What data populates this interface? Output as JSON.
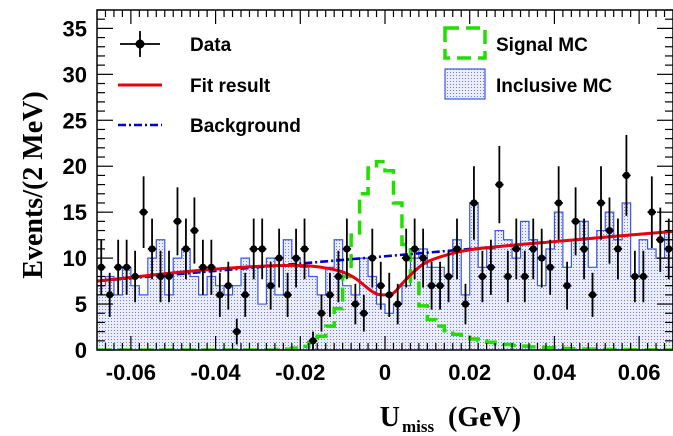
{
  "chart_data": {
    "type": "histogram-with-fit",
    "xlabel": "U",
    "xlabel_sub": "miss",
    "xlabel_unit": "(GeV)",
    "ylabel": "Events/(2 MeV)",
    "xlim": [
      -0.068,
      0.068
    ],
    "ylim": [
      0,
      37
    ],
    "x_ticks": [
      -0.06,
      -0.04,
      -0.02,
      0,
      0.02,
      0.04,
      0.06
    ],
    "x_tick_labels": [
      "-0.06",
      "-0.04",
      "-0.02",
      "0",
      "0.02",
      "0.04",
      "0.06"
    ],
    "y_ticks": [
      0,
      5,
      10,
      15,
      20,
      25,
      30,
      35
    ],
    "y_tick_labels": [
      "0",
      "5",
      "10",
      "15",
      "20",
      "25",
      "30",
      "35"
    ],
    "legend": [
      {
        "label": "Data",
        "kind": "data"
      },
      {
        "label": "Fit result",
        "kind": "fit"
      },
      {
        "label": "Background",
        "kind": "background"
      },
      {
        "label": "Signal MC",
        "kind": "signal"
      },
      {
        "label": "Inclusive MC",
        "kind": "inclusive"
      }
    ],
    "colors": {
      "data": "#000000",
      "fit": "#e8000b",
      "background": "#0000cc",
      "signal": "#22dd00",
      "inclusive_edge": "#3a57e8",
      "inclusive_fill": "#dde1f7"
    },
    "data_points": {
      "x": [
        -0.067,
        -0.065,
        -0.063,
        -0.061,
        -0.059,
        -0.057,
        -0.055,
        -0.053,
        -0.051,
        -0.049,
        -0.047,
        -0.045,
        -0.043,
        -0.041,
        -0.039,
        -0.037,
        -0.035,
        -0.033,
        -0.031,
        -0.029,
        -0.027,
        -0.025,
        -0.023,
        -0.021,
        -0.019,
        -0.017,
        -0.015,
        -0.013,
        -0.011,
        -0.009,
        -0.007,
        -0.005,
        -0.003,
        -0.001,
        0.001,
        0.003,
        0.005,
        0.007,
        0.009,
        0.011,
        0.013,
        0.015,
        0.017,
        0.019,
        0.021,
        0.023,
        0.025,
        0.027,
        0.029,
        0.031,
        0.033,
        0.035,
        0.037,
        0.039,
        0.041,
        0.043,
        0.045,
        0.047,
        0.049,
        0.051,
        0.053,
        0.055,
        0.057,
        0.059,
        0.061,
        0.063,
        0.065,
        0.067
      ],
      "y": [
        9,
        6,
        9,
        9,
        8,
        15,
        11,
        8,
        8,
        14,
        11,
        13,
        9,
        9,
        6,
        7,
        2,
        6,
        11,
        11,
        7,
        10,
        6,
        10,
        11,
        1,
        4,
        6,
        8,
        11,
        5,
        4,
        10,
        7,
        6,
        5,
        10,
        11,
        10,
        7,
        7,
        8,
        11,
        5,
        16,
        8,
        9,
        18,
        8,
        11,
        8,
        11,
        10,
        9,
        16,
        7,
        14,
        11,
        6,
        16,
        13,
        11,
        19,
        8,
        8,
        15,
        12,
        11
      ],
      "yerr": [
        3.0,
        2.4,
        3.0,
        3.0,
        2.8,
        3.9,
        3.3,
        2.8,
        2.8,
        3.7,
        3.3,
        3.6,
        3.0,
        3.0,
        2.4,
        2.6,
        1.4,
        2.4,
        3.3,
        3.3,
        2.6,
        3.2,
        2.4,
        3.2,
        3.3,
        1.0,
        2.0,
        2.4,
        2.8,
        3.3,
        2.2,
        2.0,
        3.2,
        2.6,
        2.4,
        2.2,
        3.2,
        3.3,
        3.2,
        2.6,
        2.6,
        2.8,
        3.3,
        2.2,
        4.0,
        2.8,
        3.0,
        4.2,
        2.8,
        3.3,
        2.8,
        3.3,
        3.2,
        3.0,
        4.0,
        2.6,
        3.7,
        3.3,
        2.4,
        4.0,
        3.6,
        3.3,
        4.4,
        2.8,
        2.8,
        3.9,
        3.5,
        3.3
      ]
    },
    "inclusive_mc": {
      "bin_width": 0.002,
      "x_start": -0.068,
      "values": [
        7,
        8,
        6,
        9,
        7,
        6,
        10,
        12,
        6,
        10,
        11,
        8,
        6,
        8,
        7,
        6,
        7,
        10,
        9,
        5,
        10,
        6,
        12,
        10,
        9,
        8,
        6,
        9,
        12,
        7,
        6,
        10,
        8,
        5,
        4,
        5,
        7,
        10,
        11,
        9,
        9,
        8,
        12,
        6,
        16,
        9,
        11,
        13,
        12,
        10,
        14,
        12,
        7,
        11,
        15,
        9,
        12,
        14,
        9,
        13,
        15,
        12,
        16,
        8,
        12,
        11,
        10,
        13
      ]
    },
    "signal_mc": {
      "bin_width": 0.002,
      "x_start": -0.068,
      "values": [
        0,
        0,
        0,
        0,
        0,
        0,
        0,
        0,
        0,
        0,
        0,
        0,
        0,
        0,
        0,
        0,
        0,
        0,
        0,
        0,
        0,
        0.05,
        0.1,
        0.2,
        0.4,
        0.8,
        1.5,
        2.6,
        4.5,
        8,
        12.5,
        17,
        19.8,
        20.5,
        19.5,
        16,
        11.5,
        7.5,
        4.8,
        3.3,
        2.6,
        2.1,
        1.7,
        1.4,
        1.2,
        1.0,
        0.85,
        0.7,
        0.6,
        0.5,
        0.42,
        0.36,
        0.3,
        0.25,
        0.2,
        0.17,
        0.14,
        0.11,
        0.09,
        0.07,
        0.06,
        0.05,
        0.04,
        0.03,
        0.02,
        0.01,
        0.01,
        0
      ]
    },
    "background_fit": {
      "x": [
        -0.068,
        0.068
      ],
      "y": [
        7.5,
        12.9
      ]
    },
    "fit_result": {
      "x": [
        -0.068,
        -0.06,
        -0.05,
        -0.04,
        -0.03,
        -0.02,
        -0.015,
        -0.01,
        -0.007,
        -0.004,
        -0.002,
        0,
        0.002,
        0.004,
        0.007,
        0.01,
        0.015,
        0.02,
        0.03,
        0.04,
        0.05,
        0.06,
        0.068
      ],
      "y": [
        7.5,
        7.9,
        8.4,
        8.8,
        9.1,
        9.2,
        9.0,
        8.5,
        7.8,
        6.7,
        6.1,
        6.0,
        6.2,
        7.2,
        8.6,
        9.6,
        10.4,
        10.9,
        11.4,
        11.8,
        12.2,
        12.6,
        12.9
      ]
    }
  }
}
